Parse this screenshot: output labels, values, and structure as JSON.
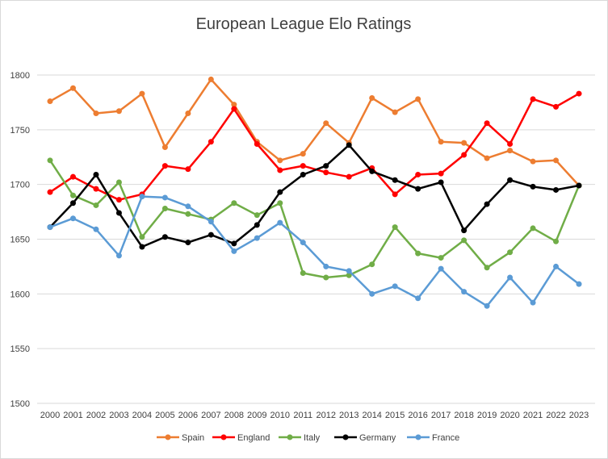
{
  "chart_data": {
    "type": "line",
    "title": "European League Elo Ratings",
    "xlabel": "",
    "ylabel": "",
    "ylim": [
      1500,
      1800
    ],
    "yticks": [
      1500,
      1550,
      1600,
      1650,
      1700,
      1750,
      1800
    ],
    "grid": "horizontal",
    "legend": "bottom",
    "x": [
      "2000",
      "2001",
      "2002",
      "2003",
      "2004",
      "2005",
      "2006",
      "2007",
      "2008",
      "2009",
      "2010",
      "2011",
      "2012",
      "2013",
      "2014",
      "2015",
      "2016",
      "2017",
      "2018",
      "2019",
      "2020",
      "2021",
      "2022",
      "2023"
    ],
    "series": [
      {
        "name": "Spain",
        "color": "#ED7D31",
        "values": [
          1776,
          1788,
          1765,
          1767,
          1783,
          1734,
          1765,
          1796,
          1773,
          1739,
          1722,
          1728,
          1756,
          1738,
          1779,
          1766,
          1778,
          1739,
          1738,
          1724,
          1731,
          1721,
          1722,
          1699
        ]
      },
      {
        "name": "England",
        "color": "#FF0000",
        "values": [
          1693,
          1707,
          1696,
          1686,
          1691,
          1717,
          1714,
          1739,
          1769,
          1737,
          1713,
          1717,
          1711,
          1707,
          1715,
          1691,
          1709,
          1710,
          1727,
          1756,
          1737,
          1778,
          1771,
          1783
        ]
      },
      {
        "name": "Italy",
        "color": "#70AD47",
        "values": [
          1722,
          1690,
          1681,
          1702,
          1652,
          1678,
          1673,
          1668,
          1683,
          1672,
          1683,
          1619,
          1615,
          1617,
          1627,
          1661,
          1637,
          1633,
          1649,
          1624,
          1638,
          1660,
          1648,
          1699
        ]
      },
      {
        "name": "Germany",
        "color": "#000000",
        "values": [
          1661,
          1683,
          1709,
          1674,
          1643,
          1652,
          1647,
          1654,
          1646,
          1663,
          1693,
          1709,
          1717,
          1736,
          1712,
          1704,
          1696,
          1702,
          1658,
          1682,
          1704,
          1698,
          1695,
          1699
        ]
      },
      {
        "name": "France",
        "color": "#5B9BD5",
        "values": [
          1661,
          1669,
          1659,
          1635,
          1689,
          1688,
          1680,
          1666,
          1639,
          1651,
          1665,
          1647,
          1625,
          1621,
          1600,
          1607,
          1596,
          1623,
          1602,
          1589,
          1615,
          1592,
          1625,
          1609
        ]
      }
    ]
  }
}
